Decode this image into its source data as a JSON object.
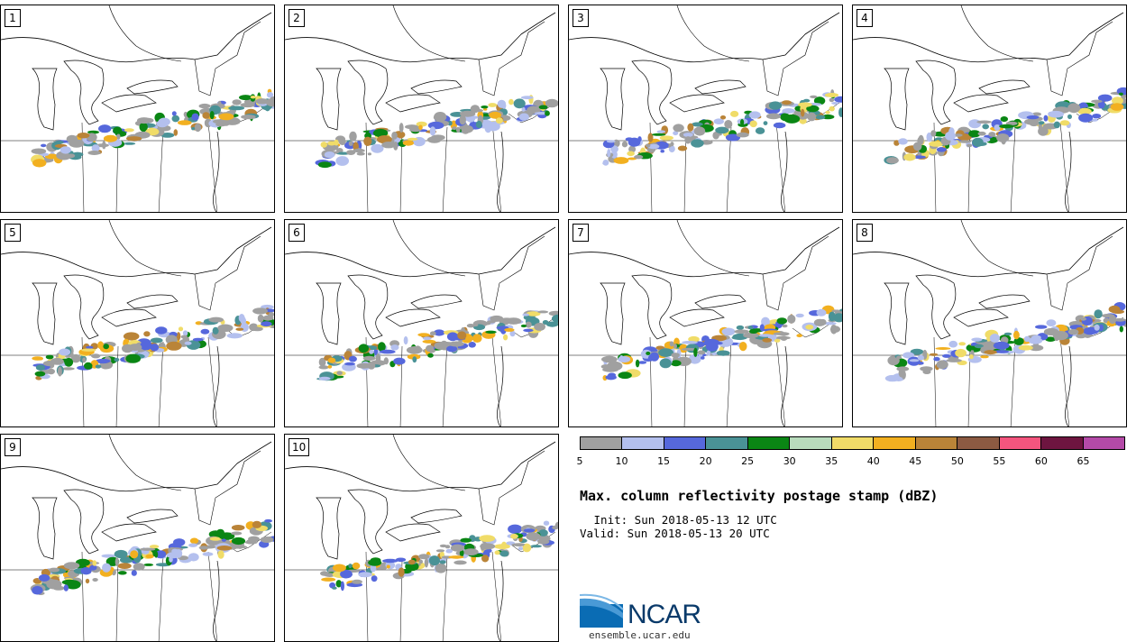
{
  "panels": [
    {
      "label": "1"
    },
    {
      "label": "2"
    },
    {
      "label": "3"
    },
    {
      "label": "4"
    },
    {
      "label": "5"
    },
    {
      "label": "6"
    },
    {
      "label": "7"
    },
    {
      "label": "8"
    },
    {
      "label": "9"
    },
    {
      "label": "10"
    }
  ],
  "colorbar": {
    "colors": [
      "#a0a0a0",
      "#b4c0ee",
      "#5668dc",
      "#4a9296",
      "#0a8614",
      "#b8dcbc",
      "#f0dc68",
      "#f2b020",
      "#ba8438",
      "#8c5a42",
      "#f4557e",
      "#6e1540",
      "#b44aa8"
    ],
    "tick_labels": [
      "5",
      "10",
      "15",
      "20",
      "25",
      "30",
      "35",
      "40",
      "45",
      "50",
      "55",
      "60",
      "65"
    ]
  },
  "title": "Max. column reflectivity postage stamp (dBZ)",
  "init": " Init: Sun 2018-05-13 12 UTC",
  "valid": "Valid: Sun 2018-05-13 20 UTC",
  "logo": {
    "text": "NCAR",
    "url": "ensemble.ucar.edu"
  }
}
